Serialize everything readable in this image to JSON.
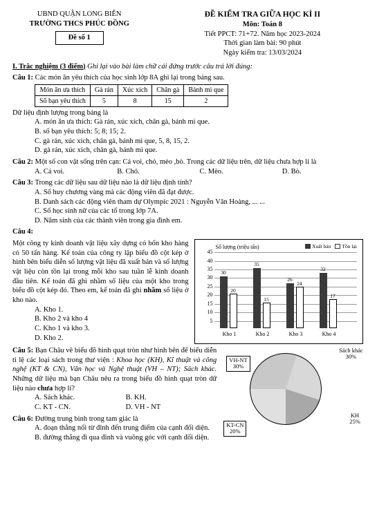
{
  "header": {
    "org1": "UBND QUẬN LONG BIÊN",
    "org2": "TRƯỜNG THCS PHÚC ĐỒNG",
    "deso": "Đề số 1",
    "title": "ĐỀ KIỂM TRA GIỮA HỌC KÌ II",
    "subject": "Môn: Toán 8",
    "tiet": "Tiết PPCT: 71+72. Năm học 2023-2024",
    "time": "Thời gian làm bài: 90 phút",
    "date": "Ngày kiểm tra: 13/03/2024"
  },
  "sectionI": "I. Trắc nghiệm (3 điểm)",
  "sectionI_note": "Ghi lại vào bài làm chữ cái đứng trước câu trả lời đúng:",
  "q1": {
    "label": "Câu 1:",
    "text": "Các món ăn yêu thích của học sinh lớp 8A ghi lại trong bảng sau.",
    "table": {
      "h1": "Món ăn ưa thích",
      "h2": "Gà rán",
      "h3": "Xúc xích",
      "h4": "Chân gà",
      "h5": "Bánh mì que",
      "r1": "Số bạn yêu thích",
      "v1": "5",
      "v2": "8",
      "v3": "15",
      "v4": "2"
    },
    "tail": "Dữ liệu định lượng trong bảng là",
    "A": "A. món ăn ưa thích: Gà rán, xúc xích, chân gà, bánh mì que.",
    "B": "B. số bạn yêu thích: 5; 8; 15; 2.",
    "C": "C. gà rán, xúc xích, chân gà, bánh mì que, 5, 8, 15, 2.",
    "D": "D. gà rán, xúc xích, chân gà, bánh mì que."
  },
  "q2": {
    "label": "Câu 2:",
    "text": "Một số con vật sống trên cạn: Cá voi, chó, mèo ,bò. Trong các dữ liệu trên, dữ liệu chưa hợp lí là",
    "A": "A. Cá voi.",
    "B": "B. Chó.",
    "C": "C. Mèo.",
    "D": "D. Bò."
  },
  "q3": {
    "label": "Câu 3:",
    "text": "Trong các dữ liệu sau dữ liệu nào là dữ liệu định tính?",
    "A": "A. Số huy chương vàng mà các động viên đã đạt được.",
    "B": "B. Danh sách các động viên tham dự Olympic 2021 : Nguyễn Văn Hoàng, ... ...",
    "C": "C. Số học sinh nữ của các tổ trong lớp 7A.",
    "D": "D. Năm sinh của các thành viên trong gia đình em."
  },
  "q4": {
    "label": "Câu 4:",
    "text": "Một công ty kinh doanh vật liệu xây dựng có bốn kho hàng có 50 tấn hàng. Kế toán của công ty lập biểu đồ cột kép ở hình bên biểu diễn số lượng vật liệu đã xuất bán và số lượng vật liệu còn tồn lại trong mỗi kho sau tuần lễ kinh doanh đầu tiên. Kế toán đã ghi nhầm số liệu của một kho trong biểu đồ cột kép đó. Theo em, kế toán đã ghi",
    "nham": "nhầm",
    "text2": "số liệu ở kho nào.",
    "A": "A. Kho 1.",
    "B": "B. Kho 2 và kho 4",
    "C": "C. Kho 1 và kho 3.",
    "D": "D. Kho 2.",
    "chart": {
      "axis_title": "Số lượng (triệu tấn)",
      "legend1": "Xuất bán",
      "legend2": "Tồn lại",
      "color_xb": "#3a3a3a",
      "color_tl": "#ffffff",
      "ymax": 45,
      "yticks": [
        5,
        10,
        15,
        20,
        25,
        30,
        35,
        40,
        45
      ],
      "cats": [
        "Kho 1",
        "Kho 2",
        "Kho 3",
        "Kho 4"
      ],
      "xb": [
        30,
        35,
        26,
        32
      ],
      "tl": [
        20,
        15,
        24,
        17
      ]
    }
  },
  "q5": {
    "label": "Câu 5:",
    "text1": "Bạn Châu vẽ biểu đồ hình quạt tròn như hình bên để biểu diễn tỉ lệ các loại sách trong thư viện : ",
    "italic": "Khoa học (KH), Kĩ thuật và công nghệ (KT & CN), Văn học và Nghệ thuật (VH – NT); Sách khác.",
    "text2": " Những dữ liệu mà bạn Châu nêu ra trong biểu đồ hình quạt tròn dữ liệu nào ",
    "chua": "chưa",
    "text3": " hợp lí?",
    "A": "A. Sách khác.",
    "B": "B. KH.",
    "C": "C. KT - CN.",
    "D": "D. VH - NT",
    "pie": {
      "l1": "VH-NT",
      "p1": "30%",
      "l2": "Sách khác",
      "p2": "30%",
      "l3": "KT-CN",
      "p3": "20%",
      "l4": "KH",
      "p4": "25%"
    }
  },
  "q6": {
    "label": "Câu 6:",
    "text": "Đường trung bình trong tam giác là",
    "A": "A. đoạn thẳng nối từ đỉnh đến trung điểm của cạnh đối diện.",
    "B": "B. đường thẳng đi qua đỉnh và vuông góc với cạnh đối diện."
  }
}
